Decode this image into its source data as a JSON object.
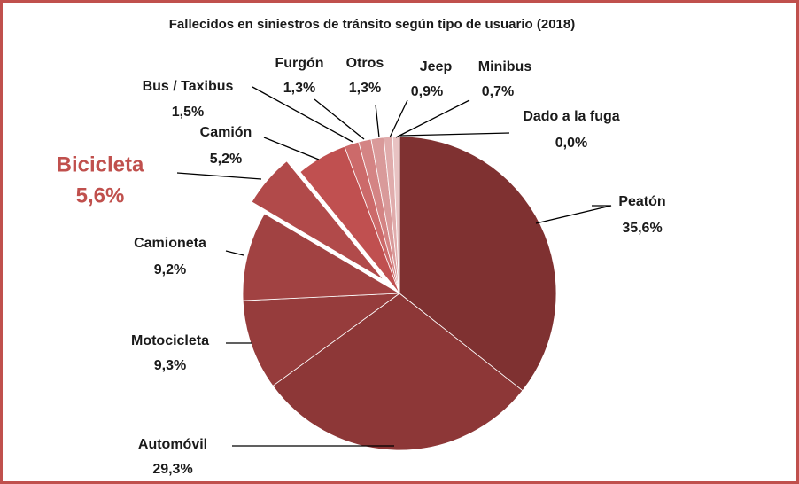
{
  "chart_data": {
    "type": "pie",
    "title": "Fallecidos en siniestros de tránsito según tipo de usuario (2018)",
    "categories": [
      "Peatón",
      "Automóvil",
      "Motocicleta",
      "Camioneta",
      "Bicicleta",
      "Camión",
      "Bus / Taxibus",
      "Furgón",
      "Otros",
      "Jeep",
      "Minibus",
      "Dado a la fuga"
    ],
    "values": [
      35.6,
      29.3,
      9.3,
      9.2,
      5.6,
      5.2,
      1.5,
      1.3,
      1.3,
      0.9,
      0.7,
      0.0
    ],
    "value_labels": [
      "35,6%",
      "29,3%",
      "9,3%",
      "9,2%",
      "5,6%",
      "5,2%",
      "1,5%",
      "1,3%",
      "1,3%",
      "0,9%",
      "0,7%",
      "0,0%"
    ],
    "colors": [
      "#7f3131",
      "#8d3737",
      "#963c3c",
      "#a14242",
      "#b14a4a",
      "#c05050",
      "#cc6a6a",
      "#d48484",
      "#d99a9a",
      "#e0acac",
      "#e8c2c2",
      "#f0d8d8"
    ],
    "exploded": 4,
    "highlight_color": "#c0504d"
  }
}
